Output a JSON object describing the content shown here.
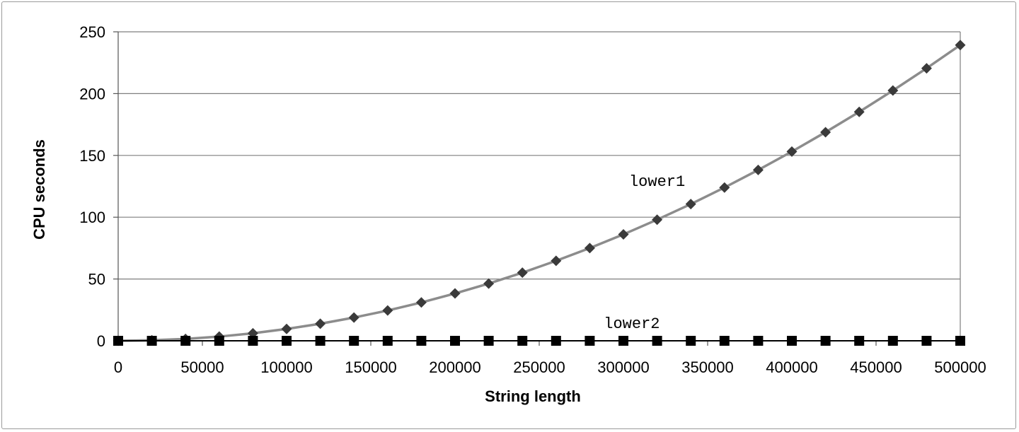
{
  "chart_data": {
    "type": "line",
    "title": "",
    "xlabel": "String length",
    "ylabel": "CPU seconds",
    "xlim": [
      0,
      500000
    ],
    "ylim": [
      0,
      250
    ],
    "x_ticks": [
      0,
      50000,
      100000,
      150000,
      200000,
      250000,
      300000,
      350000,
      400000,
      450000,
      500000
    ],
    "y_ticks": [
      0,
      50,
      100,
      150,
      200,
      250
    ],
    "grid": "horizontal",
    "legend": "none",
    "x": [
      0,
      20000,
      40000,
      60000,
      80000,
      100000,
      120000,
      140000,
      160000,
      180000,
      200000,
      220000,
      240000,
      260000,
      280000,
      300000,
      320000,
      340000,
      360000,
      380000,
      400000,
      420000,
      440000,
      460000,
      480000,
      500000
    ],
    "series": [
      {
        "name": "lower1",
        "marker": "diamond",
        "line_color": "#8c8c8c",
        "marker_color": "#3a3a3a",
        "values": [
          0.0,
          0.4,
          1.5,
          3.4,
          6.1,
          9.6,
          13.8,
          18.8,
          24.5,
          31.0,
          38.3,
          46.3,
          55.1,
          64.7,
          75.0,
          86.1,
          98.0,
          110.6,
          124.0,
          138.2,
          153.1,
          168.8,
          185.2,
          202.5,
          220.5,
          239.3
        ]
      },
      {
        "name": "lower2",
        "marker": "square",
        "line_color": "#000000",
        "marker_color": "#000000",
        "values": [
          0,
          0,
          0,
          0,
          0,
          0,
          0,
          0,
          0,
          0,
          0,
          0,
          0,
          0,
          0,
          0,
          0,
          0,
          0,
          0,
          0,
          0,
          0,
          0,
          0,
          0
        ]
      }
    ],
    "annotations": [
      {
        "text": "lower1",
        "x": 320000,
        "y": 130
      },
      {
        "text": "lower2",
        "x": 305000,
        "y": 15
      }
    ]
  }
}
